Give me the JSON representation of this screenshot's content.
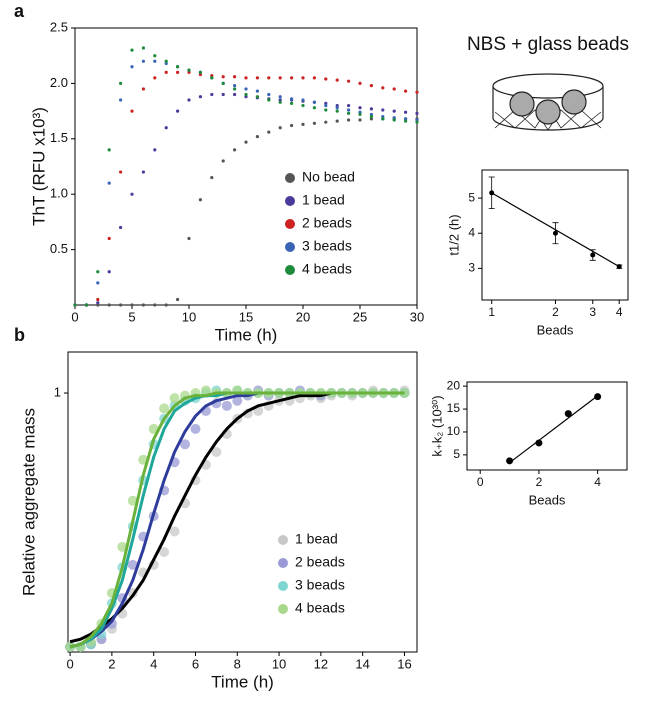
{
  "chart_data": [
    {
      "type": "scatter",
      "panel": "a",
      "xlabel": "Time (h)",
      "ylabel": "ThT (RFU x10³)",
      "xlim": [
        0,
        30
      ],
      "ylim": [
        0,
        2.5
      ],
      "xticks": [
        0,
        5,
        10,
        15,
        20,
        25,
        30
      ],
      "yticks": [
        0.5,
        {
          "value": 1,
          "label": "1.0"
        },
        1.5,
        {
          "value": 2,
          "label": "2.0"
        },
        2.5
      ],
      "legend": "lower right",
      "x": [
        0,
        1,
        2,
        3,
        4,
        5,
        6,
        7,
        8,
        9,
        10,
        11,
        12,
        13,
        14,
        15,
        16,
        17,
        18,
        19,
        20,
        21,
        22,
        23,
        24,
        25,
        26,
        27,
        28,
        29,
        30
      ],
      "series": [
        {
          "name": "No bead",
          "color": "#555555",
          "values": [
            0,
            0,
            0,
            0,
            0,
            0,
            0,
            0,
            0,
            0.05,
            0.6,
            0.95,
            1.15,
            1.3,
            1.4,
            1.47,
            1.52,
            1.56,
            1.6,
            1.62,
            1.63,
            1.64,
            1.65,
            1.66,
            1.67,
            1.67,
            1.68,
            1.68,
            1.68,
            1.68,
            1.68
          ]
        },
        {
          "name": "1 bead",
          "color": "#4b3a9a",
          "values": [
            0,
            0,
            0.02,
            0.3,
            0.7,
            1.0,
            1.2,
            1.4,
            1.6,
            1.75,
            1.85,
            1.88,
            1.9,
            1.9,
            1.9,
            1.88,
            1.87,
            1.86,
            1.85,
            1.85,
            1.84,
            1.83,
            1.82,
            1.8,
            1.8,
            1.78,
            1.77,
            1.76,
            1.75,
            1.74,
            1.73
          ]
        },
        {
          "name": "2 beads",
          "color": "#cc2222",
          "values": [
            0,
            0,
            0.05,
            0.6,
            1.2,
            1.75,
            1.95,
            2.05,
            2.1,
            2.1,
            2.1,
            2.08,
            2.07,
            2.06,
            2.06,
            2.05,
            2.05,
            2.05,
            2.05,
            2.05,
            2.05,
            2.05,
            2.04,
            2.03,
            2.02,
            2.0,
            1.98,
            1.96,
            1.95,
            1.93,
            1.92
          ]
        },
        {
          "name": "3 beads",
          "color": "#3a64b4",
          "values": [
            0,
            0,
            0.2,
            1.1,
            1.85,
            2.15,
            2.2,
            2.2,
            2.18,
            2.15,
            2.12,
            2.1,
            2.05,
            2.0,
            1.98,
            1.95,
            1.93,
            1.9,
            1.88,
            1.86,
            1.85,
            1.83,
            1.8,
            1.78,
            1.76,
            1.74,
            1.72,
            1.7,
            1.69,
            1.68,
            1.67
          ]
        },
        {
          "name": "4 beads",
          "color": "#1e8a3c",
          "values": [
            0,
            0,
            0.3,
            1.4,
            2.0,
            2.3,
            2.32,
            2.25,
            2.2,
            2.15,
            2.12,
            2.1,
            2.05,
            2.0,
            1.95,
            1.9,
            1.88,
            1.85,
            1.83,
            1.82,
            1.8,
            1.78,
            1.76,
            1.75,
            1.73,
            1.72,
            1.7,
            1.68,
            1.67,
            1.66,
            1.65
          ]
        }
      ]
    },
    {
      "type": "errorbar",
      "title": "NBS + glass beads",
      "xlabel": "Beads",
      "ylabel": "t1/2 (h)",
      "xscale": "log",
      "xlim": [
        0.9,
        4.4
      ],
      "ylim": [
        2.1,
        5.8
      ],
      "xticks": [
        1,
        2,
        3,
        4
      ],
      "yticks": [
        3,
        4,
        5
      ],
      "x": [
        1,
        2,
        3,
        4
      ],
      "values": [
        5.15,
        4.0,
        3.38,
        3.05
      ],
      "errors": [
        0.45,
        0.3,
        0.15,
        0.05
      ],
      "color": "#000000",
      "fit_line": {
        "x": [
          1,
          4
        ],
        "values": [
          5.15,
          3.05
        ]
      }
    },
    {
      "type": "scatter",
      "panel": "b",
      "xlabel": "Time (h)",
      "ylabel": "Relative aggregate mass",
      "xlim": [
        -0.1,
        16.6
      ],
      "ylim": [
        -0.01,
        1.16
      ],
      "xticks": [
        0,
        2,
        4,
        6,
        8,
        10,
        12,
        14,
        16
      ],
      "yticks": [
        1
      ],
      "legend": "lower right",
      "x": [
        0,
        0.5,
        1,
        1.5,
        2,
        2.5,
        3,
        3.5,
        4,
        4.5,
        5,
        5.5,
        6,
        6.5,
        7,
        7.5,
        8,
        8.5,
        9,
        9.5,
        10,
        10.5,
        11,
        11.5,
        12,
        12.5,
        13,
        13.5,
        14,
        14.5,
        15,
        15.5,
        16
      ],
      "series": [
        {
          "name": "1 bead",
          "color": "#c8c8c8",
          "fit_color": "#000000",
          "values": [
            0.01,
            0.01,
            0.02,
            0.04,
            0.08,
            0.14,
            0.22,
            0.3,
            0.33,
            0.38,
            0.46,
            0.57,
            0.66,
            0.72,
            0.77,
            0.84,
            0.9,
            0.92,
            0.93,
            0.95,
            0.97,
            0.97,
            0.98,
            0.99,
            0.98,
            0.99,
            1,
            0.99,
            1,
            1.01,
            1,
            1,
            1.01
          ],
          "fit": [
            0.03,
            0.04,
            0.06,
            0.09,
            0.12,
            0.16,
            0.21,
            0.27,
            0.35,
            0.43,
            0.52,
            0.6,
            0.68,
            0.75,
            0.81,
            0.86,
            0.9,
            0.93,
            0.95,
            0.96,
            0.97,
            0.98,
            0.99,
            0.99,
            0.99,
            1,
            1,
            1,
            1,
            1,
            1,
            1,
            1
          ]
        },
        {
          "name": "2 beads",
          "color": "#9a9ad6",
          "fit_color": "#2e3c9c",
          "values": [
            0.01,
            0.01,
            0.02,
            0.04,
            0.1,
            0.2,
            0.33,
            0.44,
            0.52,
            0.62,
            0.73,
            0.8,
            0.86,
            0.93,
            0.96,
            0.95,
            0.97,
            0.99,
            1.01,
            0.99,
            1,
            1,
            1.01,
            1,
            0.99,
            1,
            1,
            1,
            1,
            1,
            1,
            1,
            1
          ],
          "fit": [
            0.01,
            0.02,
            0.04,
            0.07,
            0.11,
            0.18,
            0.27,
            0.39,
            0.53,
            0.66,
            0.77,
            0.85,
            0.91,
            0.95,
            0.97,
            0.98,
            0.99,
            0.99,
            1,
            1,
            1,
            1,
            1,
            1,
            1,
            1,
            1,
            1,
            1,
            1,
            1,
            1,
            1
          ]
        },
        {
          "name": "3 beads",
          "color": "#7fd6d0",
          "fit_color": "#1fa89a",
          "values": [
            0.01,
            0.01,
            0.02,
            0.06,
            0.18,
            0.32,
            0.48,
            0.66,
            0.8,
            0.9,
            0.95,
            0.97,
            0.98,
            1,
            1.01,
            1,
            1.01,
            1,
            1,
            1,
            1,
            1,
            1,
            1,
            1,
            1,
            1,
            1,
            1,
            1,
            1,
            1,
            1
          ],
          "fit": [
            0.01,
            0.02,
            0.04,
            0.08,
            0.16,
            0.27,
            0.43,
            0.6,
            0.75,
            0.86,
            0.93,
            0.96,
            0.98,
            0.99,
            0.99,
            1,
            1,
            1,
            1,
            1,
            1,
            1,
            1,
            1,
            1,
            1,
            1,
            1,
            1,
            1,
            1,
            1,
            1
          ]
        },
        {
          "name": "4 beads",
          "color": "#a8d88a",
          "fit_color": "#6ab23c",
          "values": [
            0.01,
            0.01,
            0.03,
            0.1,
            0.22,
            0.4,
            0.58,
            0.74,
            0.86,
            0.94,
            0.98,
            0.99,
            1,
            1.01,
            1,
            1,
            1.01,
            1,
            1,
            1,
            1,
            1,
            1,
            1,
            1,
            1,
            1,
            1,
            1,
            1,
            1,
            1,
            1
          ],
          "fit": [
            0.01,
            0.02,
            0.05,
            0.1,
            0.18,
            0.32,
            0.5,
            0.68,
            0.82,
            0.9,
            0.95,
            0.98,
            0.99,
            0.99,
            1,
            1,
            1,
            1,
            1,
            1,
            1,
            1,
            1,
            1,
            1,
            1,
            1,
            1,
            1,
            1,
            1,
            1,
            1
          ]
        }
      ]
    },
    {
      "type": "scatter",
      "xlabel": "Beads",
      "ylabel": "k₊k₂ (10³⁰)",
      "xlim": [
        -0.45,
        5
      ],
      "ylim": [
        1.7,
        20.9
      ],
      "xticks": [
        0,
        2,
        4
      ],
      "yticks": [
        5,
        10,
        15,
        20
      ],
      "x": [
        1,
        2,
        3,
        4
      ],
      "values": [
        3.7,
        7.6,
        14,
        17.7
      ],
      "color": "#000000",
      "fit_line": {
        "x": [
          1,
          4
        ],
        "values": [
          3.3,
          17.9
        ]
      }
    }
  ]
}
